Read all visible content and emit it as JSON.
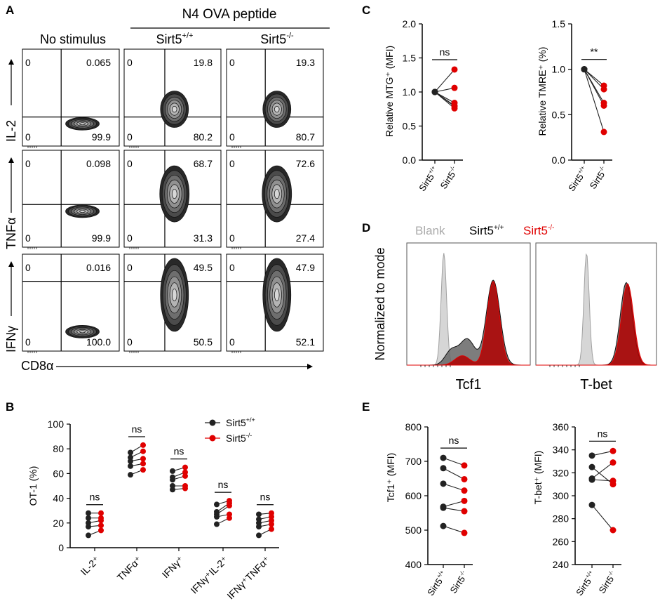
{
  "colors": {
    "wt": "#222222",
    "ko": "#e00000",
    "blank": "#b4b4b4",
    "wt_fill": "#555555",
    "ko_fill": "#b00000"
  },
  "panel_labels": [
    "A",
    "B",
    "C",
    "D",
    "E"
  ],
  "genotype_wt": "Sirt5",
  "genotype_wt_sup": "+/+",
  "genotype_ko": "Sirt5",
  "genotype_ko_sup": "-/-",
  "panel_a": {
    "header": "N4 OVA peptide",
    "col_titles": [
      "No stimulus",
      "Sirt5",
      "Sirt5"
    ],
    "col_title_sups": [
      "",
      "+/+",
      "-/-"
    ],
    "row_labels": [
      "IL-2",
      "TNFα",
      "IFNγ"
    ],
    "x_label": "CD8α",
    "gates": [
      [
        {
          "ul": "0",
          "ur": "0.065",
          "ll": "0",
          "lr": "99.9"
        },
        {
          "ul": "0",
          "ur": "19.8",
          "ll": "0",
          "lr": "80.2"
        },
        {
          "ul": "0",
          "ur": "19.3",
          "ll": "0",
          "lr": "80.7"
        }
      ],
      [
        {
          "ul": "0",
          "ur": "0.098",
          "ll": "0",
          "lr": "99.9"
        },
        {
          "ul": "0",
          "ur": "68.7",
          "ll": "0",
          "lr": "31.3"
        },
        {
          "ul": "0",
          "ur": "72.6",
          "ll": "0",
          "lr": "27.4"
        }
      ],
      [
        {
          "ul": "0",
          "ur": "0.016",
          "ll": "0",
          "lr": "100.0"
        },
        {
          "ul": "0",
          "ur": "49.5",
          "ll": "0",
          "lr": "50.5"
        },
        {
          "ul": "0",
          "ur": "47.9",
          "ll": "0",
          "lr": "52.1"
        }
      ]
    ]
  },
  "chart_data": [
    {
      "panel": "B",
      "type": "scatter",
      "ylabel": "OT-1 (%)",
      "ylim": [
        0,
        100
      ],
      "yticks": [
        0,
        20,
        40,
        60,
        80,
        100
      ],
      "categories": [
        "IL-2⁺",
        "TNFα⁺",
        "IFNγ⁺",
        "IFNγ⁺IL-2⁺",
        "IFNγ⁺TNFα⁺"
      ],
      "significance": [
        "ns",
        "ns",
        "ns",
        "ns",
        "ns"
      ],
      "legend": [
        "Sirt5+/+",
        "Sirt5-/-"
      ],
      "legend_position": "top-right",
      "paired": [
        {
          "wt": [
            10,
            17,
            20,
            24,
            28
          ],
          "ko": [
            14,
            18,
            22,
            24,
            28
          ]
        },
        {
          "wt": [
            59,
            66,
            70,
            73,
            77
          ],
          "ko": [
            63,
            68,
            72,
            78,
            83
          ]
        },
        {
          "wt": [
            47,
            50,
            55,
            57,
            62
          ],
          "ko": [
            48,
            50,
            58,
            61,
            65
          ]
        },
        {
          "wt": [
            19,
            25,
            27,
            29,
            35
          ],
          "ko": [
            24,
            27,
            34,
            36,
            38
          ]
        },
        {
          "wt": [
            10,
            17,
            20,
            23,
            27
          ],
          "ko": [
            15,
            19,
            22,
            25,
            28
          ]
        }
      ]
    },
    {
      "panel": "C-left",
      "type": "scatter",
      "ylabel": "Relative MTG⁺ (MFI)",
      "ylim": [
        0,
        2.0
      ],
      "yticks": [
        "0.0",
        "0.5",
        "1.0",
        "1.5",
        "2.0"
      ],
      "significance": "ns",
      "x_categories": [
        "Sirt5+/+",
        "Sirt5-/-"
      ],
      "paired": {
        "wt": [
          1,
          1,
          1,
          1,
          1,
          1
        ],
        "ko": [
          1.33,
          1.06,
          0.84,
          0.8,
          0.76,
          0.79
        ]
      }
    },
    {
      "panel": "C-right",
      "type": "scatter",
      "ylabel": "Relative TMRE⁺ (%)",
      "ylim": [
        0,
        1.5
      ],
      "yticks": [
        "0.0",
        "0.5",
        "1.0",
        "1.5"
      ],
      "significance": "**",
      "x_categories": [
        "Sirt5+/+",
        "Sirt5-/-"
      ],
      "paired": {
        "wt": [
          1,
          1,
          1,
          1,
          1
        ],
        "ko": [
          0.82,
          0.78,
          0.63,
          0.6,
          0.31
        ]
      }
    },
    {
      "panel": "D",
      "type": "area",
      "ylabel": "Normalized to mode",
      "legend": [
        "Blank",
        "Sirt5+/+",
        "Sirt5-/-"
      ],
      "histograms": [
        {
          "xlabel": "Tcf1",
          "blank_peak": 0.28,
          "wt_peak": 0.72,
          "ko_peak": 0.71
        },
        {
          "xlabel": "T-bet",
          "blank_peak": 0.35,
          "wt_peak": 0.66,
          "ko_peak": 0.66
        }
      ]
    },
    {
      "panel": "E-left",
      "type": "scatter",
      "ylabel": "Tcf1⁺ (MFI)",
      "ylim": [
        400,
        800
      ],
      "yticks": [
        400,
        500,
        600,
        700,
        800
      ],
      "significance": "ns",
      "x_categories": [
        "Sirt5+/+",
        "Sirt5-/-"
      ],
      "paired": {
        "wt": [
          710,
          680,
          635,
          568,
          565,
          512
        ],
        "ko": [
          688,
          648,
          615,
          585,
          555,
          492
        ]
      }
    },
    {
      "panel": "E-right",
      "type": "scatter",
      "ylabel": "T-bet⁺ (MFI)",
      "ylim": [
        240,
        360
      ],
      "yticks": [
        240,
        260,
        280,
        300,
        320,
        340,
        360
      ],
      "significance": "ns",
      "x_categories": [
        "Sirt5+/+",
        "Sirt5-/-"
      ],
      "paired": {
        "wt": [
          335,
          325,
          315,
          314,
          292
        ],
        "ko": [
          339,
          310,
          329,
          313,
          270
        ]
      }
    }
  ]
}
